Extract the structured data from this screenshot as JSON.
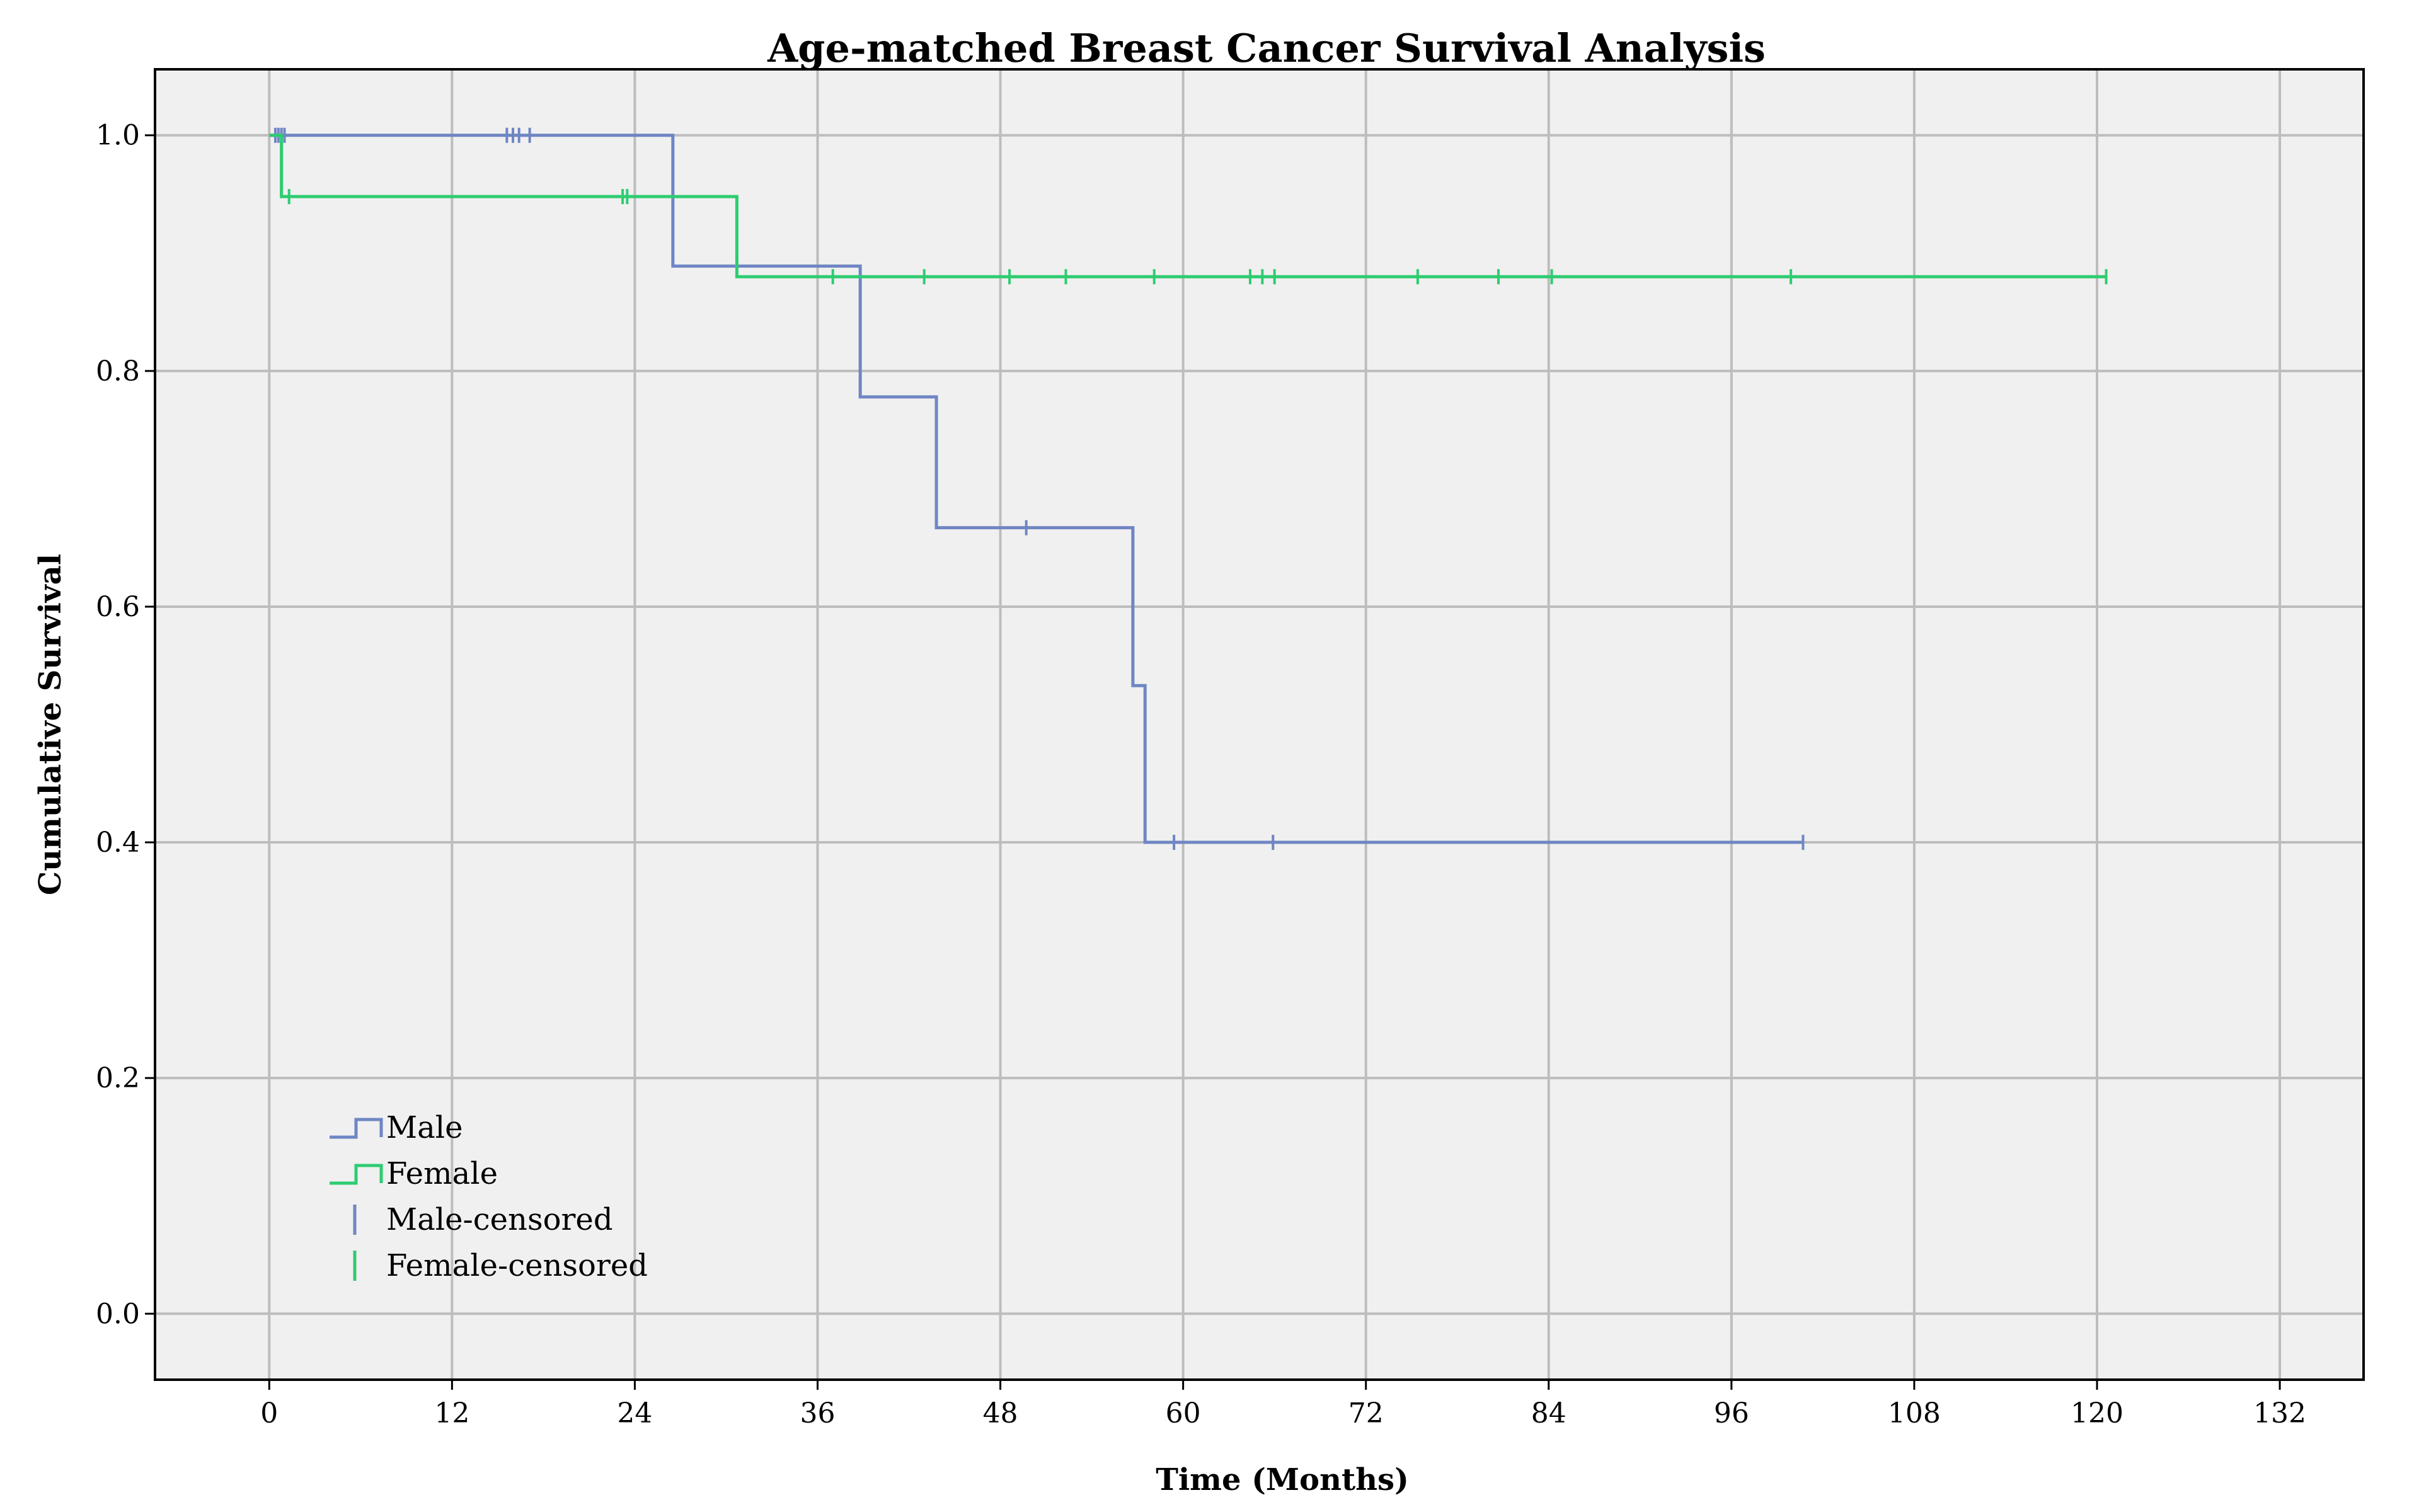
{
  "chart_data": {
    "type": "line",
    "title": "Age-matched Breast Cancer Survival Analysis",
    "xlabel": "Time (Months)",
    "ylabel": "Cumulative Survival",
    "xlim": [
      -7.5,
      137.5
    ],
    "ylim": [
      -0.056,
      1.056
    ],
    "x_ticks": [
      0,
      12,
      24,
      36,
      48,
      60,
      72,
      84,
      96,
      108,
      120,
      132
    ],
    "y_ticks": [
      0.0,
      0.2,
      0.4,
      0.6,
      0.8,
      1.0
    ],
    "y_tick_labels": [
      "0.0",
      "0.2",
      "0.4",
      "0.6",
      "0.8",
      "1.0"
    ],
    "grid": true,
    "legend_position": "bottom-left",
    "plot_background": "#f0f0f0",
    "grid_color": "#bdbdbd",
    "series": [
      {
        "name": "Male",
        "color": "#6f86c4",
        "steps": [
          [
            0,
            1.0
          ],
          [
            26.5,
            0.889
          ],
          [
            38.8,
            0.778
          ],
          [
            43.8,
            0.667
          ],
          [
            56.7,
            0.533
          ],
          [
            57.5,
            0.4
          ],
          [
            100.7,
            0.4
          ]
        ],
        "censored_name": "Male-censored",
        "censored": [
          [
            0.4,
            1.0
          ],
          [
            0.6,
            1.0
          ],
          [
            0.8,
            1.0
          ],
          [
            1.0,
            1.0
          ],
          [
            15.6,
            1.0
          ],
          [
            16.0,
            1.0
          ],
          [
            16.4,
            1.0
          ],
          [
            17.1,
            1.0
          ],
          [
            49.7,
            0.667
          ],
          [
            59.4,
            0.4
          ],
          [
            65.9,
            0.4
          ],
          [
            100.7,
            0.4
          ]
        ]
      },
      {
        "name": "Female",
        "color": "#2ecc71",
        "steps": [
          [
            0,
            1.0
          ],
          [
            0.8,
            0.948
          ],
          [
            30.7,
            0.88
          ],
          [
            120.6,
            0.88
          ]
        ],
        "censored_name": "Female-censored",
        "censored": [
          [
            1.3,
            0.948
          ],
          [
            23.2,
            0.948
          ],
          [
            23.5,
            0.948
          ],
          [
            37.0,
            0.88
          ],
          [
            43.0,
            0.88
          ],
          [
            48.6,
            0.88
          ],
          [
            52.3,
            0.88
          ],
          [
            58.1,
            0.88
          ],
          [
            64.4,
            0.88
          ],
          [
            65.2,
            0.88
          ],
          [
            66.0,
            0.88
          ],
          [
            75.4,
            0.88
          ],
          [
            80.7,
            0.88
          ],
          [
            84.2,
            0.88
          ],
          [
            99.9,
            0.88
          ],
          [
            120.6,
            0.88
          ]
        ]
      }
    ]
  }
}
